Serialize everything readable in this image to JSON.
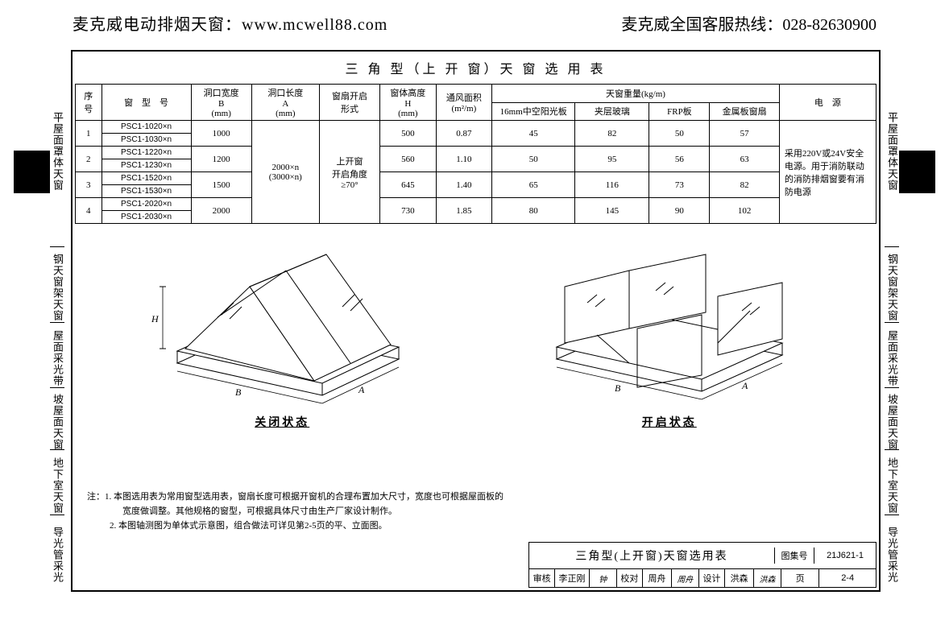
{
  "header": {
    "site_label": "麦克威电动排烟天窗：",
    "site_url": "www.mcwell88.com",
    "hotline_label": "麦克威全国客服热线：",
    "hotline_number": "028-82630900"
  },
  "title": "三 角 型（上 开 窗）天 窗 选 用 表",
  "table": {
    "headers": {
      "seq": "序\n号",
      "model": "窗　型　号",
      "hole_width": "洞口宽度\nB\n(mm)",
      "hole_length": "洞口长度\nA\n(mm)",
      "open_mode": "窗扇开启\n形式",
      "height": "窗体高度\nH\n(mm)",
      "vent_area": "通风面积\n(m²/m)",
      "weight_group": "天窗重量(kg/m)",
      "weight_sub": [
        "16mm中空阳光板",
        "夹层玻璃",
        "FRP板",
        "金属板窗扇"
      ],
      "power": "电　源"
    },
    "common": {
      "hole_length": "2000×n\n(3000×n)",
      "open_mode": "上开窗\n开启角度\n≥70°",
      "power": "采用220V或24V安全电源。用于消防联动的消防排烟窗要有消防电源"
    },
    "rows": [
      {
        "seq": "1",
        "models": [
          "PSC1-1020×n",
          "PSC1-1030×n"
        ],
        "width": "1000",
        "height": "500",
        "vent": "0.87",
        "w": [
          "45",
          "82",
          "50",
          "57"
        ]
      },
      {
        "seq": "2",
        "models": [
          "PSC1-1220×n",
          "PSC1-1230×n"
        ],
        "width": "1200",
        "height": "560",
        "vent": "1.10",
        "w": [
          "50",
          "95",
          "56",
          "63"
        ]
      },
      {
        "seq": "3",
        "models": [
          "PSC1-1520×n",
          "PSC1-1530×n"
        ],
        "width": "1500",
        "height": "645",
        "vent": "1.40",
        "w": [
          "65",
          "116",
          "73",
          "82"
        ]
      },
      {
        "seq": "4",
        "models": [
          "PSC1-2020×n",
          "PSC1-2030×n"
        ],
        "width": "2000",
        "height": "730",
        "vent": "1.85",
        "w": [
          "80",
          "145",
          "90",
          "102"
        ]
      }
    ]
  },
  "diagram_labels": {
    "closed": "关闭状态",
    "open": "开启状态",
    "dim_H": "H",
    "dim_A": "A",
    "dim_B": "B"
  },
  "notes": {
    "prefix": "注：",
    "items": [
      "1. 本图选用表为常用窗型选用表，窗扇长度可根据开窗机的合理布置加大尺寸，宽度也可根据屋面板的宽度做调整。其他规格的窗型，可根据具体尺寸由生产厂家设计制作。",
      "2. 本图轴测图为单体式示意图，组合做法可详见第2-5页的平、立面图。"
    ]
  },
  "titleblock": {
    "title": "三角型(上开窗)天窗选用表",
    "sheet_label": "图集号",
    "sheet_code": "21J621-1",
    "review_label": "审核",
    "review_name": "李正刚",
    "review_sig": "钟",
    "check_label": "校对",
    "check_name": "周舟",
    "check_sig": "周舟",
    "design_label": "设计",
    "design_name": "洪森",
    "design_sig": "洪森",
    "page_label": "页",
    "page_no": "2-4"
  },
  "side_labels": [
    "平屋面罩体天窗",
    "钢天窗架天窗",
    "屋面采光带",
    "坡屋面天窗",
    "地下室天窗",
    "导光管采光"
  ],
  "side_ticks_pct": [
    0,
    36.5,
    50.5,
    62.7,
    74.1,
    86.3
  ]
}
